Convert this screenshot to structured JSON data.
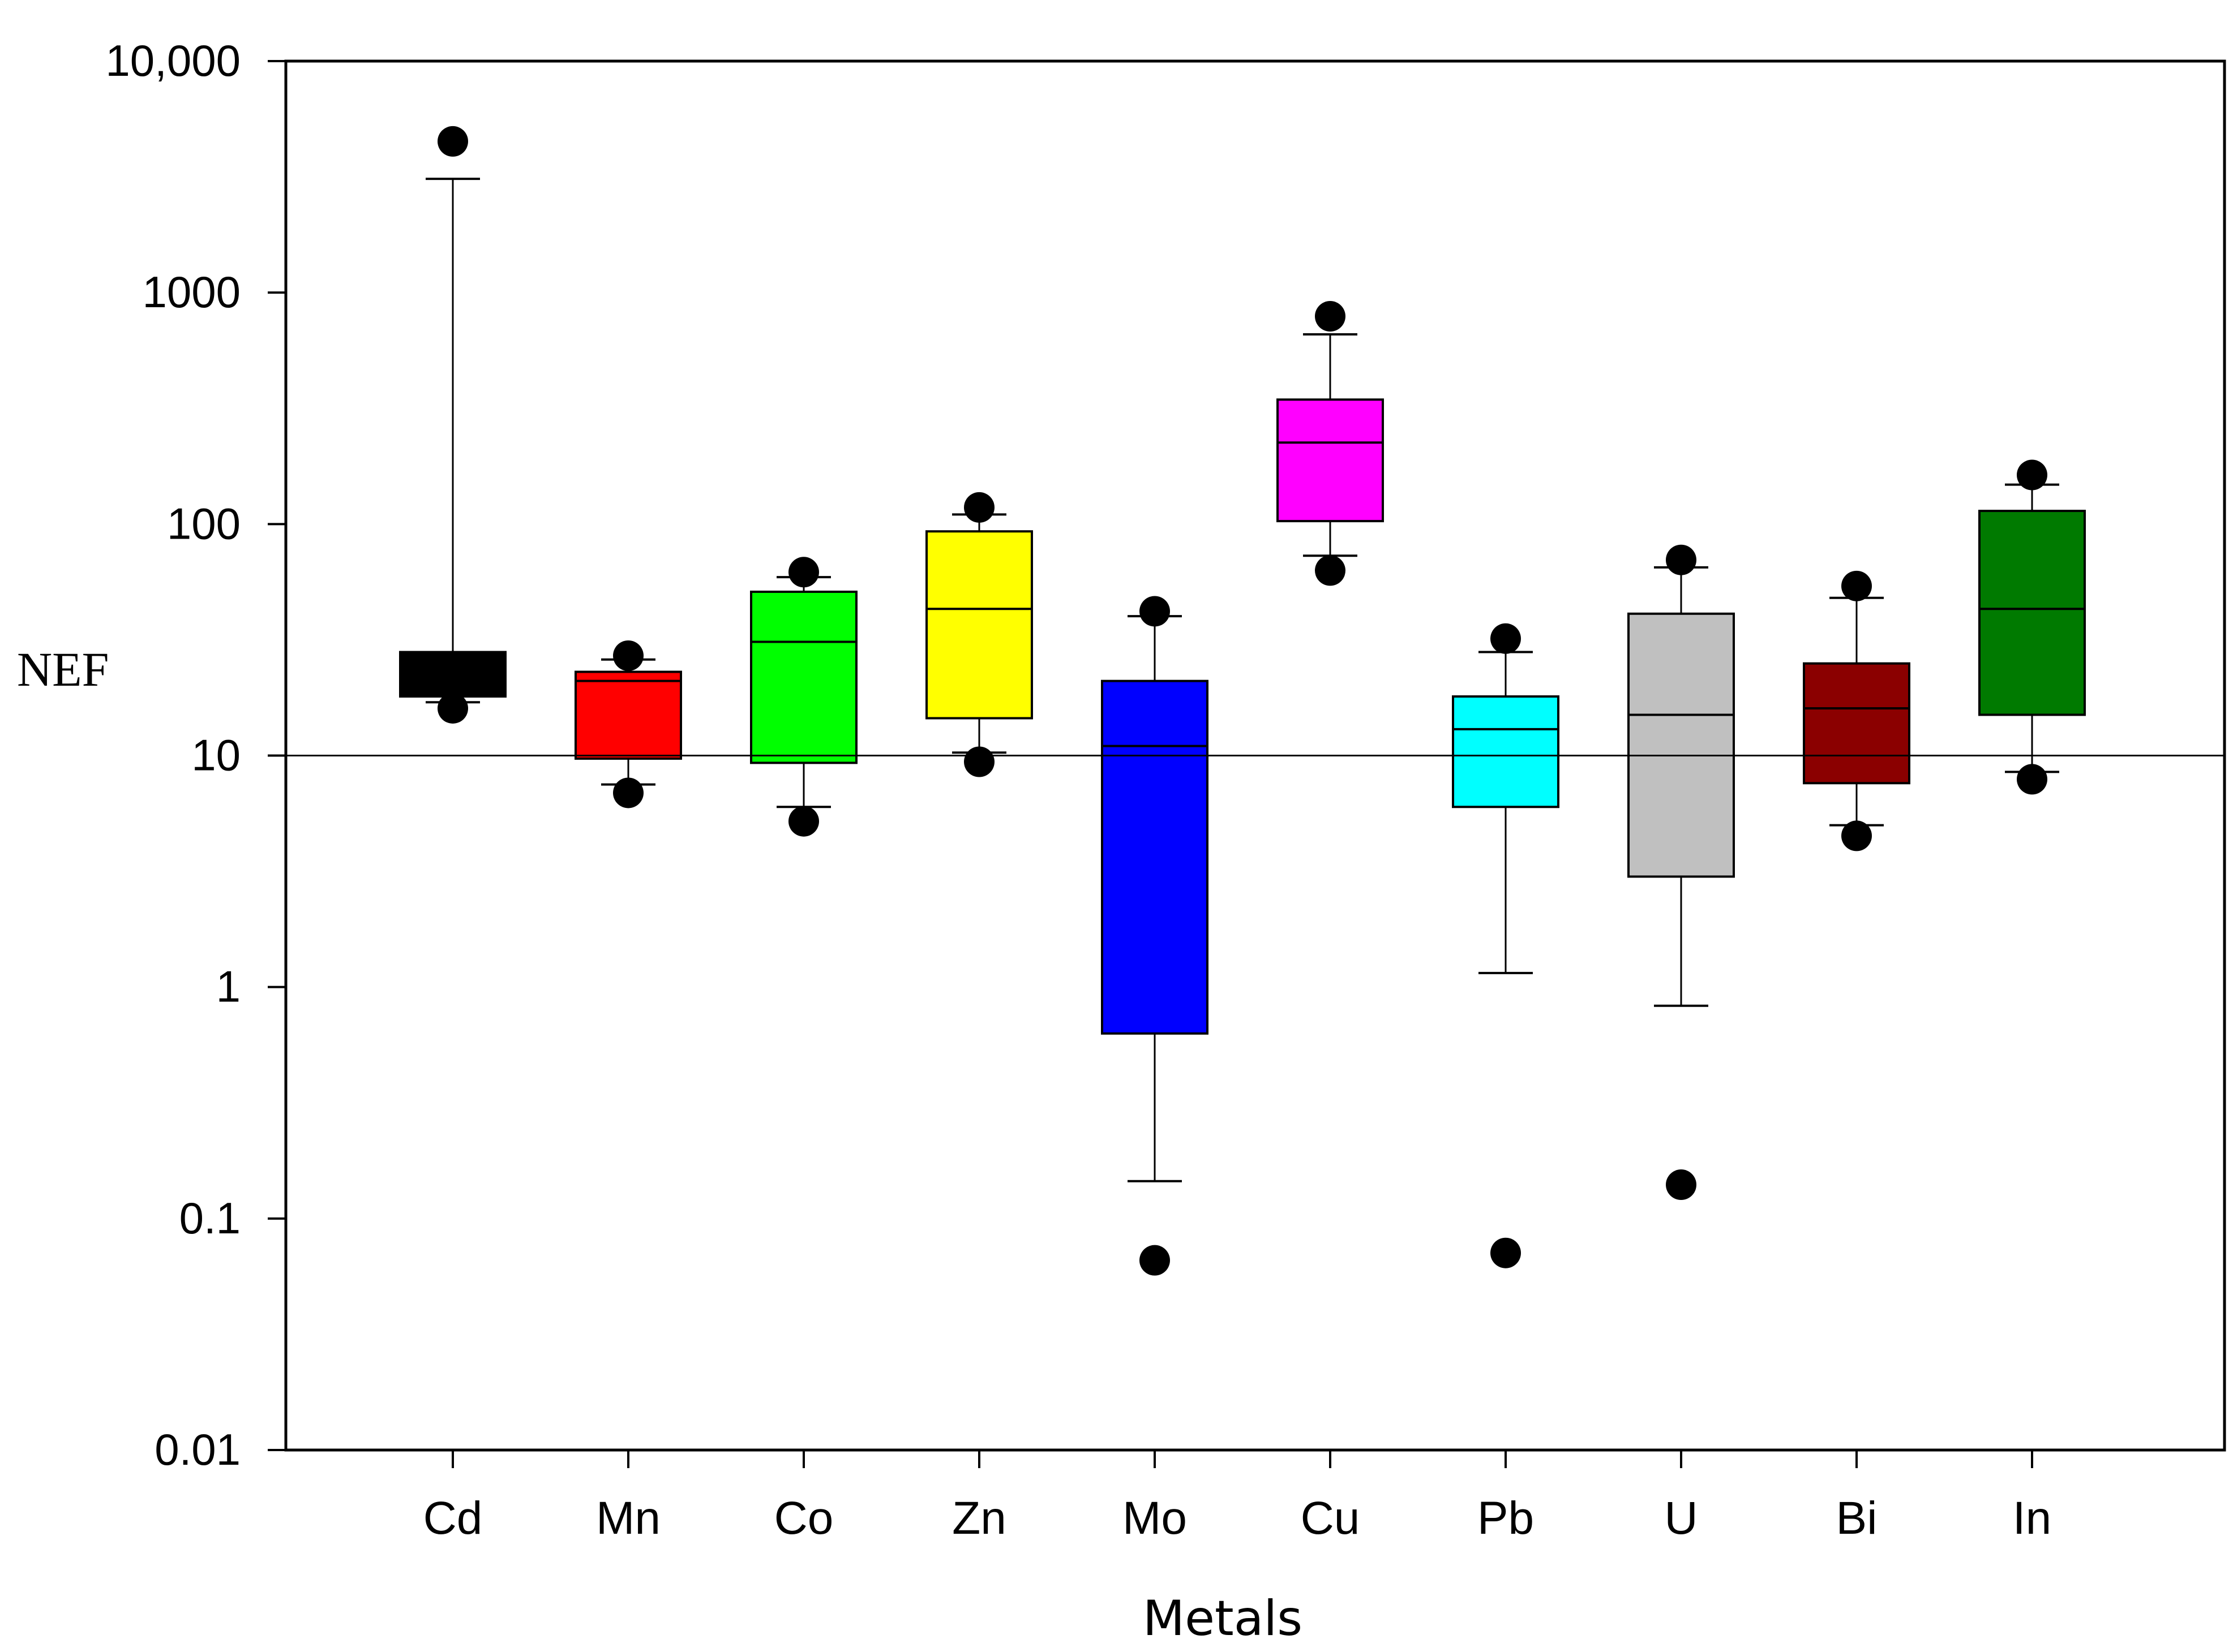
{
  "chart_data": {
    "type": "box",
    "title": "",
    "xlabel": "Metals",
    "ylabel": "NEF",
    "yscale": "log",
    "ylim": [
      0.01,
      10000
    ],
    "yticks": [
      {
        "value": 0.01,
        "label": "0.01"
      },
      {
        "value": 0.1,
        "label": "0.1"
      },
      {
        "value": 1,
        "label": "1"
      },
      {
        "value": 10,
        "label": "10"
      },
      {
        "value": 100,
        "label": "100"
      },
      {
        "value": 1000,
        "label": "1000"
      },
      {
        "value": 10000,
        "label": "10,000"
      }
    ],
    "reference_line": 10,
    "categories": [
      "Cd",
      "Mn",
      "Co",
      "Zn",
      "Mo",
      "Cu",
      "Pb",
      "U",
      "Bi",
      "In"
    ],
    "boxes": [
      {
        "name": "Cd",
        "color": "#000000",
        "whisker_low": 17,
        "q1": 18,
        "median": 21,
        "q3": 28,
        "whisker_high": 3100,
        "outliers": [
          4500,
          16
        ]
      },
      {
        "name": "Mn",
        "color": "#ff0000",
        "whisker_low": 7.5,
        "q1": 9.7,
        "median": 21,
        "q3": 23,
        "whisker_high": 26,
        "outliers": [
          27,
          6.9
        ]
      },
      {
        "name": "Co",
        "color": "#00ff00",
        "whisker_low": 6.0,
        "q1": 9.3,
        "median": 31,
        "q3": 51,
        "whisker_high": 59,
        "outliers": [
          62,
          5.2
        ]
      },
      {
        "name": "Zn",
        "color": "#ffff00",
        "whisker_low": 10.3,
        "q1": 14.5,
        "median": 43,
        "q3": 93,
        "whisker_high": 110,
        "outliers": [
          118,
          9.4
        ]
      },
      {
        "name": "Mo",
        "color": "#0000ff",
        "whisker_low": 0.145,
        "q1": 0.63,
        "median": 11,
        "q3": 21,
        "whisker_high": 40,
        "outliers": [
          42,
          0.066
        ]
      },
      {
        "name": "Cu",
        "color": "#ff00ff",
        "whisker_low": 73,
        "q1": 103,
        "median": 225,
        "q3": 345,
        "whisker_high": 660,
        "outliers": [
          790,
          63
        ]
      },
      {
        "name": "Pb",
        "color": "#00ffff",
        "whisker_low": 1.15,
        "q1": 6.0,
        "median": 13,
        "q3": 18,
        "whisker_high": 28,
        "outliers": [
          32,
          0.071
        ]
      },
      {
        "name": "U",
        "color": "#c0c0c0",
        "whisker_low": 0.83,
        "q1": 3.0,
        "median": 15,
        "q3": 41,
        "whisker_high": 65,
        "outliers": [
          70,
          0.14
        ]
      },
      {
        "name": "Bi",
        "color": "#8b0000",
        "whisker_low": 5.0,
        "q1": 7.6,
        "median": 16,
        "q3": 25,
        "whisker_high": 48,
        "outliers": [
          54,
          4.5
        ]
      },
      {
        "name": "In",
        "color": "#007a00",
        "whisker_low": 8.5,
        "q1": 15,
        "median": 43,
        "q3": 114,
        "whisker_high": 148,
        "outliers": [
          163,
          7.9
        ]
      }
    ]
  }
}
